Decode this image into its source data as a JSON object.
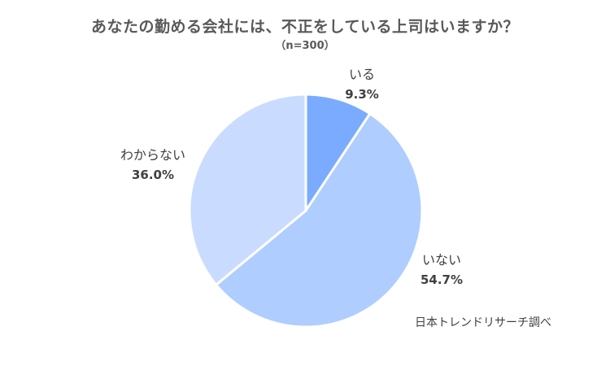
{
  "chart_data": {
    "type": "pie",
    "title": "あなたの勤める会社には、不正をしている上司はいますか？",
    "subtitle": "（n=300）",
    "slices": [
      {
        "label": "いる",
        "value": 9.3,
        "display": "9.3%",
        "color": "#7aabff"
      },
      {
        "label": "いない",
        "value": 54.7,
        "display": "54.7%",
        "color": "#afcdff"
      },
      {
        "label": "わからない",
        "value": 36.0,
        "display": "36.0%",
        "color": "#c9dcff"
      }
    ],
    "start_angle": "12 o'clock",
    "direction": "clockwise"
  },
  "source": "日本トレンドリサーチ調べ"
}
